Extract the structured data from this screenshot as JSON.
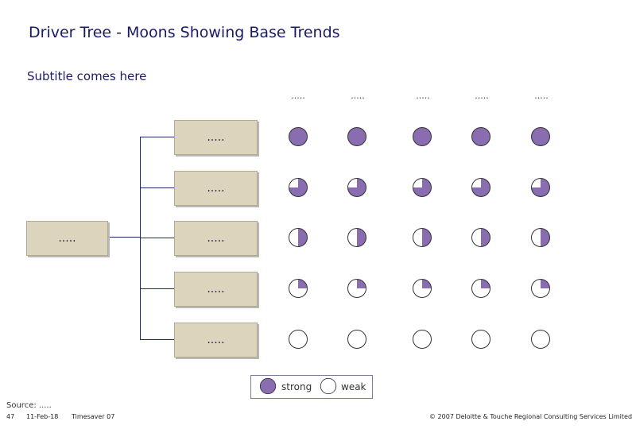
{
  "title": "Driver Tree - Moons Showing Base Trends",
  "subtitle": "Subtitle comes here",
  "column_headers": [
    ".....",
    ".....",
    ".....",
    ".....",
    "....."
  ],
  "root_box_label": ".....",
  "branch_box_labels": [
    ".....",
    ".....",
    ".....",
    ".....",
    "....."
  ],
  "moon_fill_levels": [
    [
      1,
      1,
      1,
      1,
      1
    ],
    [
      0.75,
      0.75,
      0.75,
      0.75,
      0.75
    ],
    [
      0.5,
      0.5,
      0.5,
      0.5,
      0.5
    ],
    [
      0.25,
      0.25,
      0.25,
      0.25,
      0.25
    ],
    [
      0,
      0,
      0,
      0,
      0
    ]
  ],
  "legend": {
    "strong_label": "strong",
    "weak_label": "weak"
  },
  "colors": {
    "moon_fill": "#8a6cb0",
    "box_fill": "#ddd4bd",
    "tree_line": "#1a2a6e"
  },
  "source_label": "Source: .....",
  "footer": {
    "page_number": "47",
    "date": "11-Feb-18",
    "product": "Timesaver 07",
    "copyright": "© 2007 Deloitte & Touche Regional Consulting Services Limited"
  }
}
